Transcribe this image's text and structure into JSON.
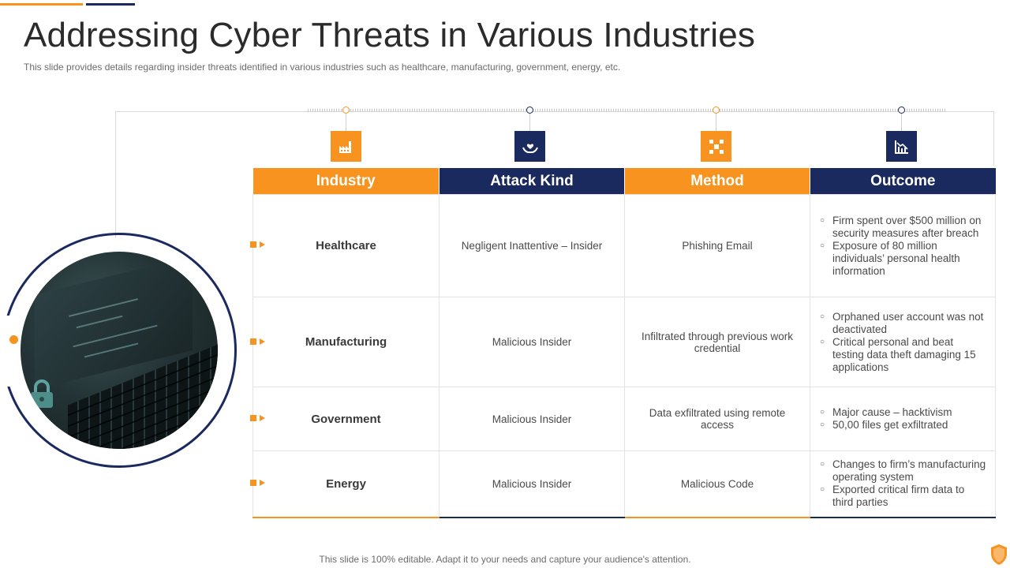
{
  "header": {
    "title": "Addressing Cyber Threats in Various Industries",
    "subtitle": "This slide provides details regarding insider threats identified in various industries such as healthcare, manufacturing, government, energy, etc."
  },
  "colors": {
    "accent": "#F7931E",
    "navy": "#1B2A5E"
  },
  "table": {
    "columns": [
      {
        "label": "Industry",
        "icon": "factory-icon",
        "color": "orange"
      },
      {
        "label": "Attack Kind",
        "icon": "hand-heart-icon",
        "color": "navy"
      },
      {
        "label": "Method",
        "icon": "network-hub-icon",
        "color": "orange"
      },
      {
        "label": "Outcome",
        "icon": "chart-decline-icon",
        "color": "navy"
      }
    ],
    "rows": [
      {
        "industry": "Healthcare",
        "attack_kind": "Negligent  Inattentive – Insider",
        "method": "Phishing Email",
        "outcome": [
          "Firm spent over  $500 million on security measures after breach",
          "Exposure of 80 million individuals’  personal health information"
        ]
      },
      {
        "industry": "Manufacturing",
        "attack_kind": "Malicious Insider",
        "method": "Infiltrated  through  previous  work credential",
        "outcome": [
          "Orphaned  user account was not deactivated",
          "Critical personal and beat testing data theft damaging 15 applications"
        ]
      },
      {
        "industry": "Government",
        "attack_kind": "Malicious Insider",
        "method": "Data exfiltrated using remote access",
        "outcome": [
          "Major cause – hacktivism",
          "50,00 files get exfiltrated"
        ]
      },
      {
        "industry": "Energy",
        "attack_kind": "Malicious Insider",
        "method": "Malicious Code",
        "outcome": [
          "Changes  to firm’s manufacturing operating system",
          "Exported  critical firm data to third parties"
        ]
      }
    ]
  },
  "footer": {
    "text": "This slide is 100% editable. Adapt it to your needs and capture your audience's attention."
  }
}
